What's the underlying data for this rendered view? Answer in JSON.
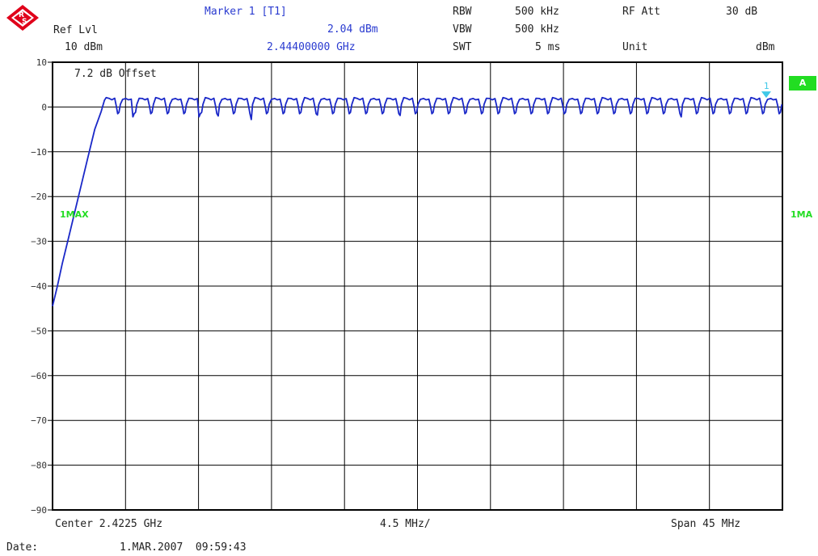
{
  "header": {
    "ref_lvl_label": "Ref Lvl",
    "ref_lvl_value": "10 dBm",
    "marker_label": "Marker 1 [T1]",
    "marker_level": "2.04 dBm",
    "marker_freq": "2.44400000 GHz",
    "rbw_label": "RBW",
    "rbw_value": "500 kHz",
    "vbw_label": "VBW",
    "vbw_value": "500 kHz",
    "swt_label": "SWT",
    "swt_value": "5 ms",
    "rfatt_label": "RF Att",
    "rfatt_value": "30 dB",
    "unit_label": "Unit",
    "unit_value": "dBm"
  },
  "offset_text": "7.2 dB Offset",
  "trace_label_left": "1MAX",
  "trace_label_right": "1MA",
  "badge": "A",
  "marker_number": "1",
  "footer": {
    "center": "Center 2.4225 GHz",
    "div": "4.5 MHz/",
    "span": "Span 45 MHz",
    "date_label": "Date:",
    "date_value": "1.MAR.2007  09:59:43"
  },
  "colors": {
    "trace": "#1a28c8",
    "grid": "#000000",
    "marker": "#40c8e8",
    "badge": "#22dd22",
    "header_blue": "#2a3bd0"
  },
  "chart_data": {
    "type": "line",
    "ylim": [
      -90,
      10
    ],
    "xlim": [
      2.4,
      2.445
    ],
    "x_unit": "GHz",
    "y_unit": "dBm",
    "yticks": [
      "10",
      "0",
      "-10",
      "-20",
      "-30",
      "-40",
      "-50",
      "-60",
      "-70",
      "-80",
      "-90"
    ],
    "grid": true,
    "marker": {
      "x": 2.444,
      "y": 2.04
    },
    "series": [
      {
        "points": [
          [
            2.4,
            -44.5
          ],
          [
            2.4003,
            -40
          ],
          [
            2.4006,
            -35
          ],
          [
            2.401,
            -29
          ],
          [
            2.4014,
            -23
          ],
          [
            2.4018,
            -17
          ],
          [
            2.4022,
            -11
          ],
          [
            2.4026,
            -5
          ],
          [
            2.403,
            -1
          ],
          [
            2.4032,
            1.5
          ]
        ],
        "comb": {
          "start": 2.4032,
          "end": 2.445,
          "count": 41,
          "high": 1.8,
          "low": -1.5
        },
        "dips": [
          [
            2.4048,
            -2.2
          ],
          [
            2.4087,
            -2.2
          ],
          [
            2.4105,
            -2.0
          ],
          [
            2.4125,
            -2.8
          ],
          [
            2.4125,
            -2.8
          ],
          [
            2.4163,
            -1.8
          ],
          [
            2.4218,
            -1.9
          ],
          [
            2.4388,
            -2.2
          ]
        ]
      }
    ]
  }
}
